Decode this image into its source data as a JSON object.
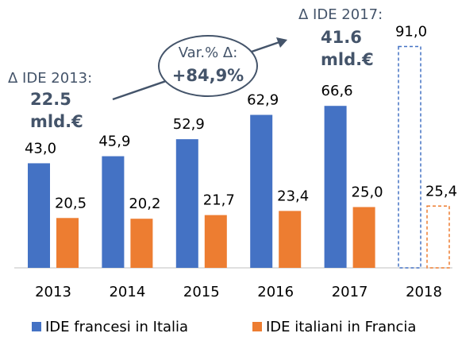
{
  "chart_data": {
    "type": "bar",
    "categories": [
      "2013",
      "2014",
      "2015",
      "2016",
      "2017",
      "2018"
    ],
    "series": [
      {
        "name": "IDE francesi in Italia",
        "color": "#4472c4",
        "values": [
          43.0,
          45.9,
          52.9,
          62.9,
          66.6,
          91.0
        ],
        "value_labels": [
          "43,0",
          "45,9",
          "52,9",
          "62,9",
          "66,6",
          "91,0"
        ]
      },
      {
        "name": "IDE italiani in Francia",
        "color": "#ed7d31",
        "values": [
          20.5,
          20.2,
          21.7,
          23.4,
          25.0,
          25.4
        ],
        "value_labels": [
          "20,5",
          "20,2",
          "21,7",
          "23,4",
          "25,0",
          "25,4"
        ]
      }
    ],
    "dashed_category": "2018",
    "legend": "bottom",
    "annotations": {
      "left": [
        "Δ IDE 2013:",
        "22.5",
        "mld.€"
      ],
      "right": [
        "Δ IDE 2017:",
        "41.6",
        "mld.€"
      ],
      "bubble": [
        "Var.% Δ:",
        "+84,9%"
      ]
    }
  }
}
